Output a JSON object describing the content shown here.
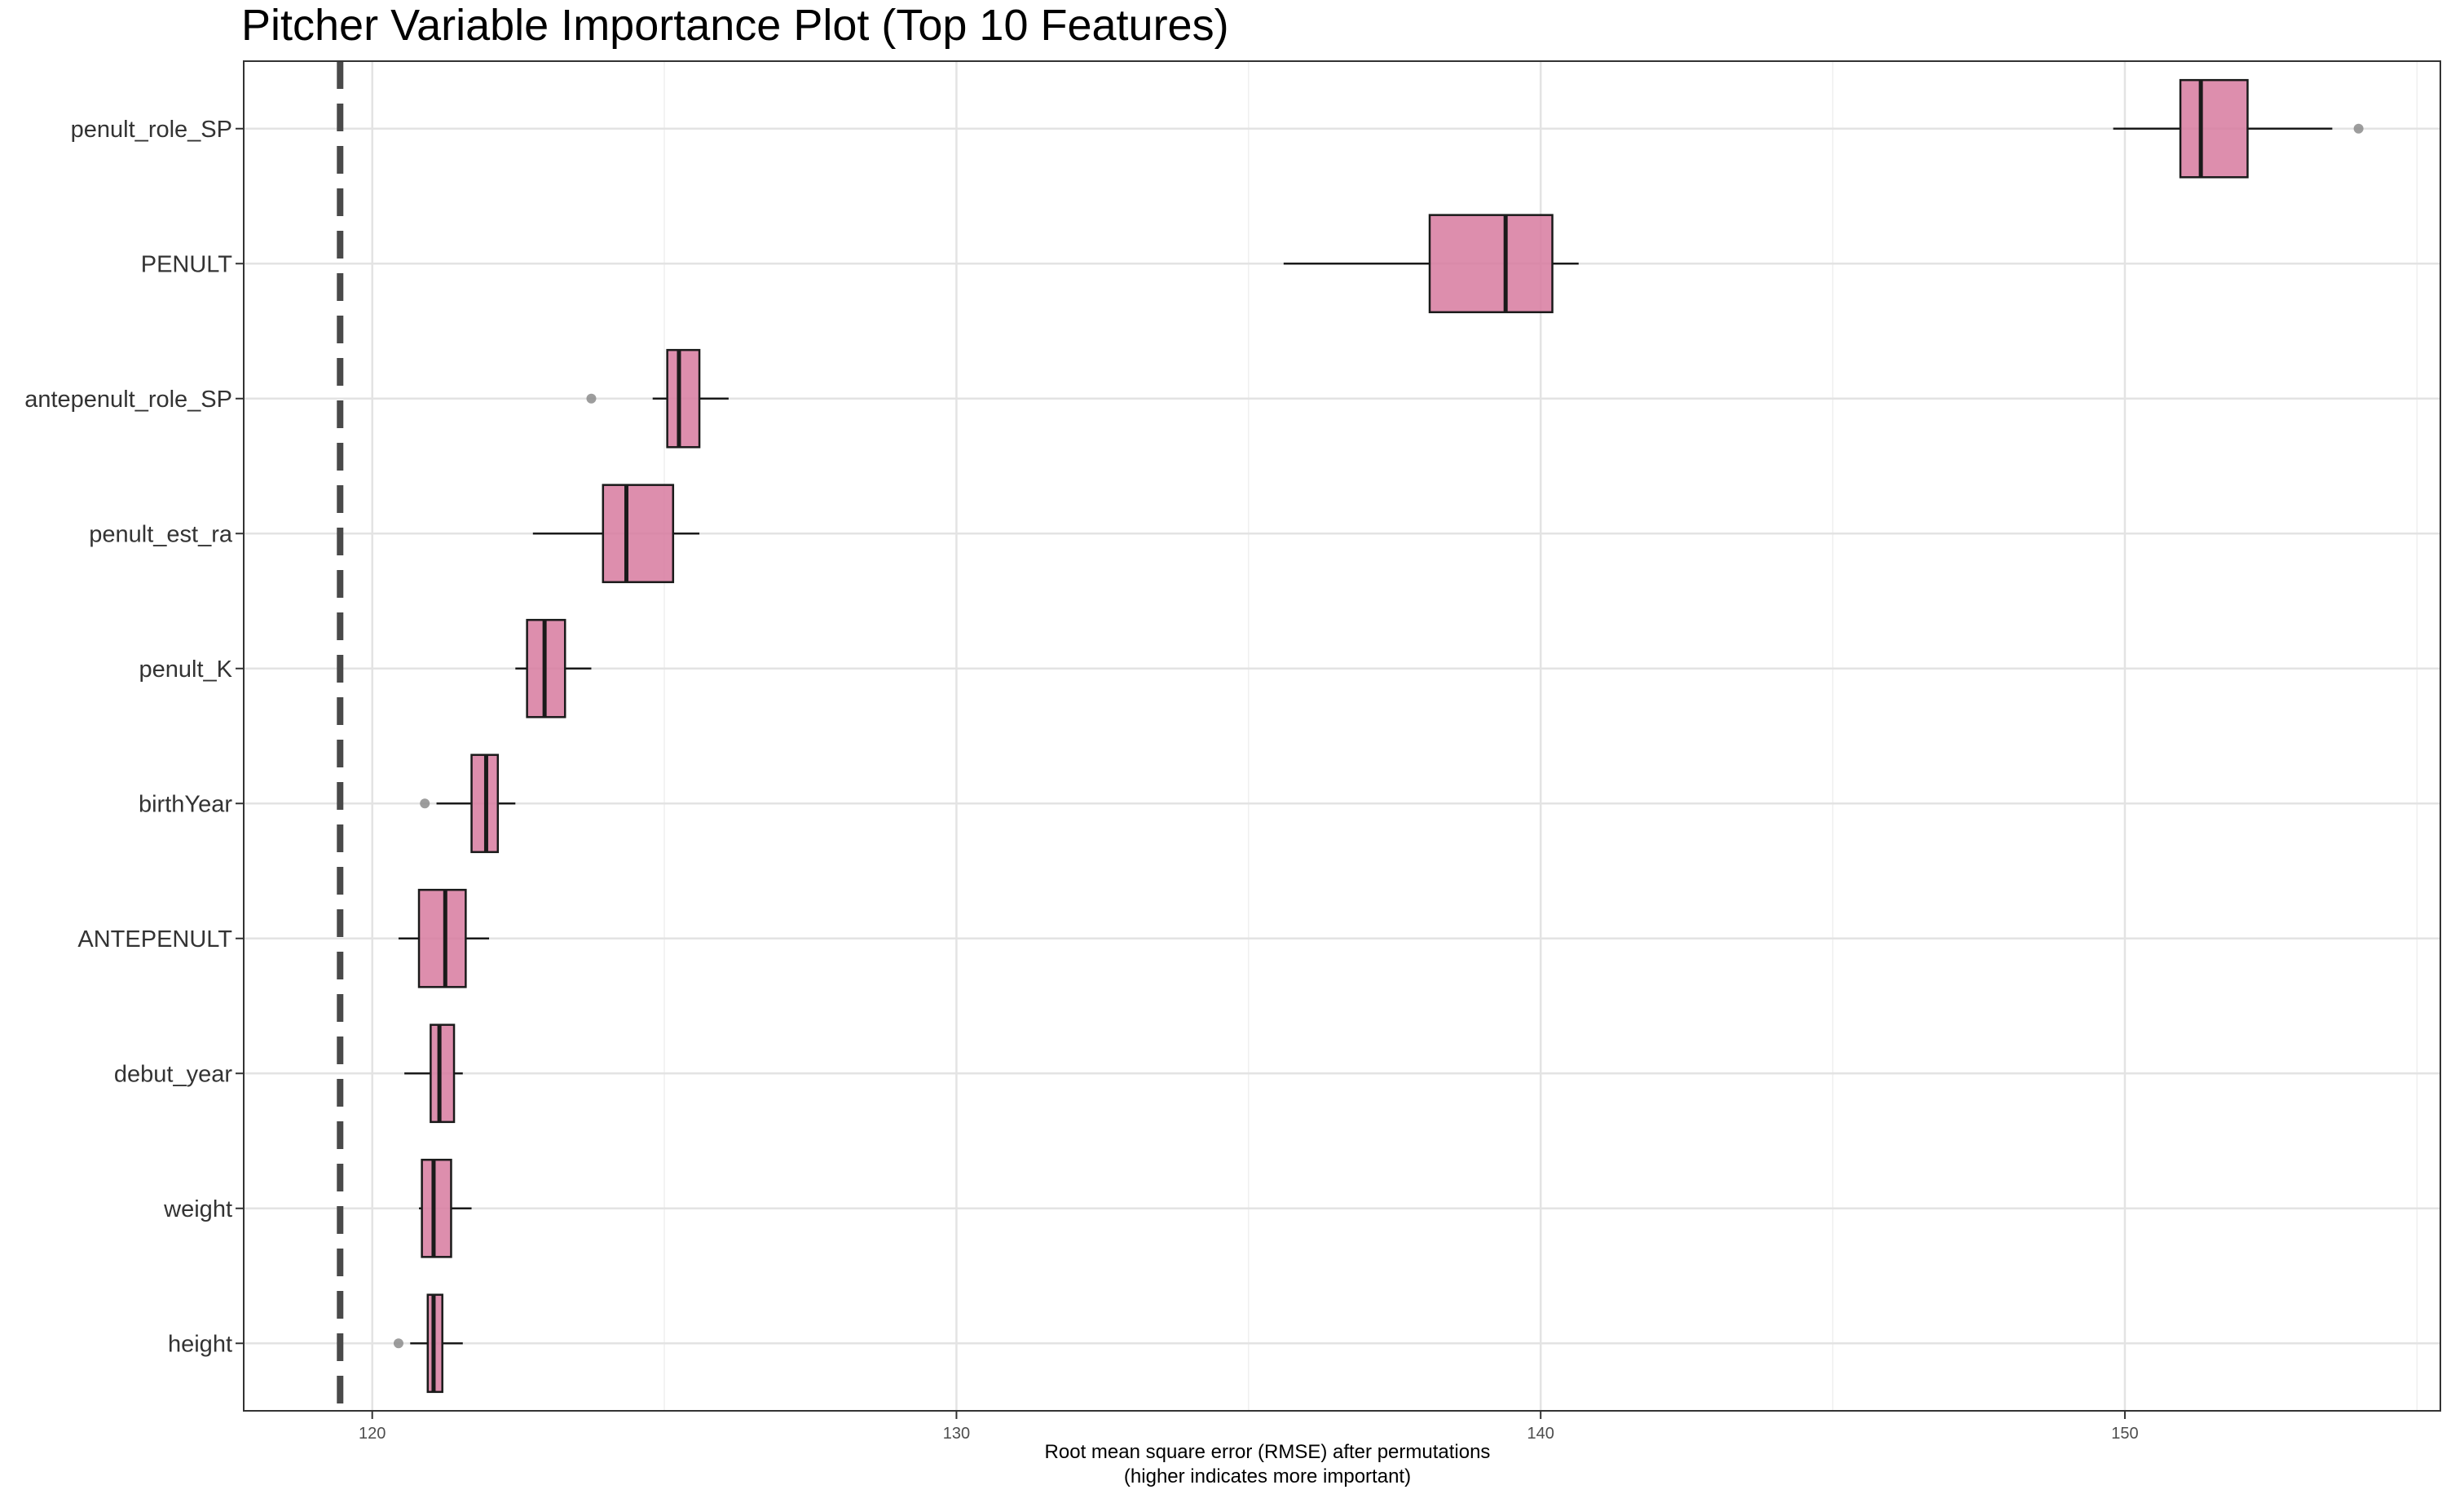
{
  "chart_data": {
    "type": "boxplot",
    "title": "Pitcher Variable Importance Plot (Top 10 Features)",
    "xlabel": "Root mean square error (RMSE) after permutations",
    "xlabel_sub": "(higher indicates more important)",
    "ylabel": "",
    "xlim": [
      117.8,
      155.4
    ],
    "x_ticks": [
      120,
      130,
      140,
      150
    ],
    "x_tick_labels": [
      "120",
      "130",
      "140",
      "150"
    ],
    "baseline_rmse": 119.45,
    "grid": true,
    "box_color": "#d77a9f",
    "categories": [
      "penult_role_SP",
      "PENULT",
      "antepenult_role_SP",
      "penult_est_ra",
      "penult_K",
      "birthYear",
      "ANTEPENULT",
      "debut_year",
      "weight",
      "height"
    ],
    "boxes": [
      {
        "label": "penult_role_SP",
        "whisker_low": 149.8,
        "q1": 150.95,
        "median": 151.3,
        "q3": 152.1,
        "whisker_high": 153.55,
        "outliers": [
          154.0
        ]
      },
      {
        "label": "PENULT",
        "whisker_low": 135.6,
        "q1": 138.1,
        "median": 139.4,
        "q3": 140.2,
        "whisker_high": 140.65,
        "outliers": []
      },
      {
        "label": "antepenult_role_SP",
        "whisker_low": 124.8,
        "q1": 125.05,
        "median": 125.25,
        "q3": 125.6,
        "whisker_high": 126.1,
        "outliers": [
          123.75
        ]
      },
      {
        "label": "penult_est_ra",
        "whisker_low": 122.75,
        "q1": 123.95,
        "median": 124.35,
        "q3": 125.15,
        "whisker_high": 125.6,
        "outliers": []
      },
      {
        "label": "penult_K",
        "whisker_low": 122.45,
        "q1": 122.65,
        "median": 122.95,
        "q3": 123.3,
        "whisker_high": 123.75,
        "outliers": []
      },
      {
        "label": "birthYear",
        "whisker_low": 121.1,
        "q1": 121.7,
        "median": 121.95,
        "q3": 122.15,
        "whisker_high": 122.45,
        "outliers": [
          120.9
        ]
      },
      {
        "label": "ANTEPENULT",
        "whisker_low": 120.45,
        "q1": 120.8,
        "median": 121.25,
        "q3": 121.6,
        "whisker_high": 122.0,
        "outliers": []
      },
      {
        "label": "debut_year",
        "whisker_low": 120.55,
        "q1": 121.0,
        "median": 121.15,
        "q3": 121.4,
        "whisker_high": 121.55,
        "outliers": []
      },
      {
        "label": "weight",
        "whisker_low": 120.8,
        "q1": 120.85,
        "median": 121.05,
        "q3": 121.35,
        "whisker_high": 121.7,
        "outliers": []
      },
      {
        "label": "height",
        "whisker_low": 120.65,
        "q1": 120.95,
        "median": 121.05,
        "q3": 121.2,
        "whisker_high": 121.55,
        "outliers": [
          120.45
        ]
      }
    ]
  }
}
